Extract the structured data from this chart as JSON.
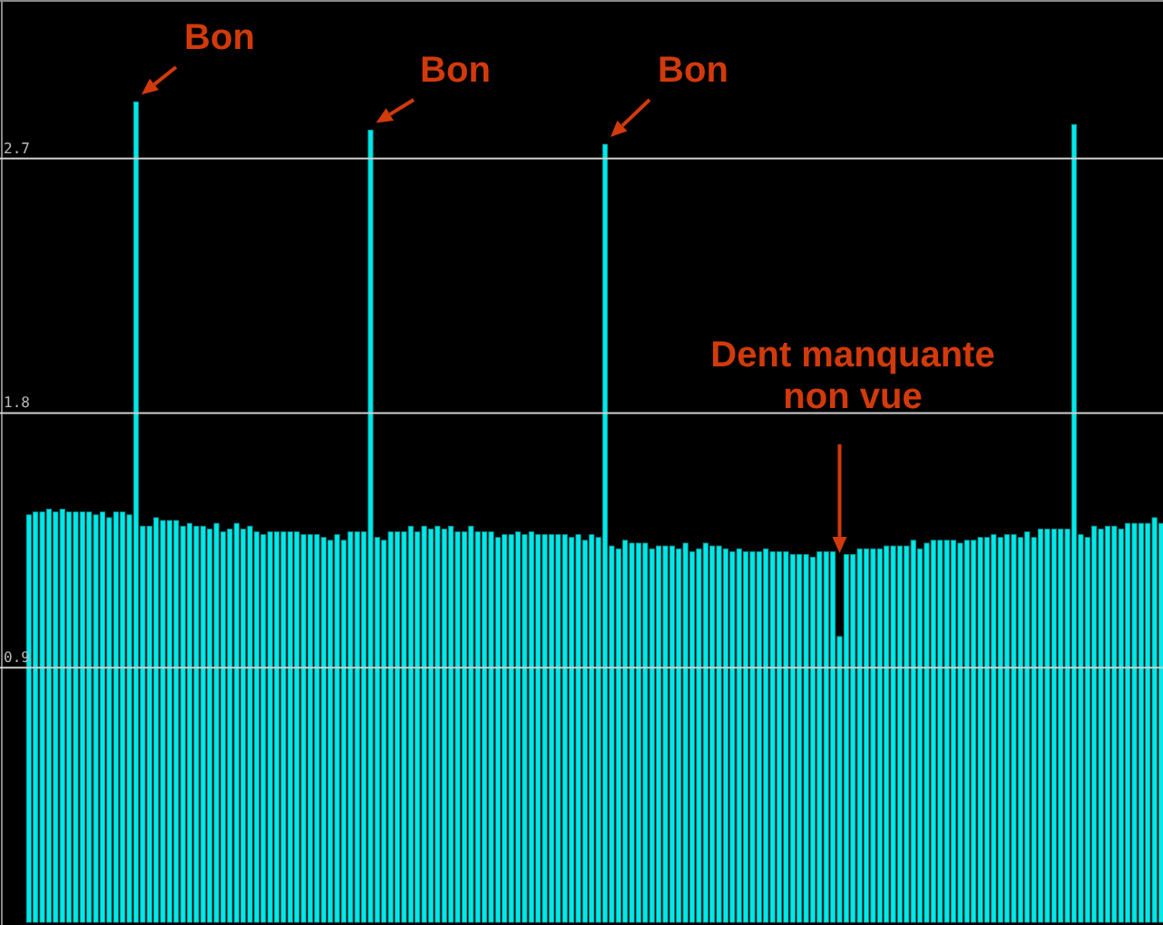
{
  "chart_data": {
    "type": "bar",
    "color": "#00e8e8",
    "ylim": [
      0,
      3.26
    ],
    "yticks": [
      0.9,
      1.8,
      2.7
    ],
    "grid": "y",
    "categories": [
      null,
      null,
      null,
      null,
      null,
      null,
      null,
      null,
      null,
      null,
      null,
      null,
      null,
      null,
      null,
      null,
      null,
      null,
      null,
      null,
      null,
      null,
      null,
      null,
      null,
      null,
      null,
      null,
      null,
      null,
      null,
      null,
      null,
      null,
      null,
      null,
      null,
      null,
      null,
      null,
      null,
      null,
      null,
      null,
      null,
      null,
      null,
      null,
      null,
      null,
      null,
      null,
      null,
      null,
      null,
      null,
      null,
      null,
      null,
      null,
      null,
      null,
      null,
      null,
      null,
      null,
      null,
      null,
      null,
      null,
      null,
      null,
      null,
      null,
      null,
      null,
      null,
      null,
      null,
      null,
      null,
      null,
      null,
      null,
      null,
      null,
      null,
      null,
      null,
      null,
      null,
      null,
      null,
      null,
      null,
      null,
      null,
      null,
      null,
      null,
      null,
      null,
      null,
      null,
      null,
      null,
      null,
      null,
      null,
      null,
      null,
      null,
      null,
      null,
      null,
      null,
      null,
      null,
      null,
      null,
      null,
      null,
      null,
      null,
      null,
      null,
      null,
      null,
      null,
      null,
      null,
      null,
      null,
      null,
      null,
      null,
      null,
      null,
      null,
      null,
      null,
      null,
      null,
      null,
      null,
      null,
      null,
      null,
      null,
      null,
      null,
      null,
      null,
      null,
      null,
      null,
      null,
      null,
      null,
      null,
      null,
      null,
      null,
      null,
      null,
      null,
      null,
      null,
      null,
      null
    ],
    "values": [
      1.44,
      1.45,
      1.45,
      1.46,
      1.45,
      1.46,
      1.45,
      1.45,
      1.45,
      1.45,
      1.44,
      1.45,
      1.43,
      1.45,
      1.45,
      1.44,
      2.9,
      1.4,
      1.4,
      1.43,
      1.42,
      1.42,
      1.42,
      1.4,
      1.41,
      1.4,
      1.4,
      1.39,
      1.41,
      1.38,
      1.39,
      1.41,
      1.39,
      1.4,
      1.38,
      1.37,
      1.38,
      1.38,
      1.38,
      1.38,
      1.38,
      1.37,
      1.37,
      1.37,
      1.36,
      1.35,
      1.37,
      1.35,
      1.38,
      1.38,
      1.38,
      2.8,
      1.36,
      1.35,
      1.38,
      1.38,
      1.38,
      1.4,
      1.38,
      1.4,
      1.39,
      1.4,
      1.39,
      1.4,
      1.38,
      1.38,
      1.4,
      1.38,
      1.38,
      1.38,
      1.36,
      1.37,
      1.37,
      1.38,
      1.37,
      1.38,
      1.37,
      1.37,
      1.37,
      1.37,
      1.37,
      1.36,
      1.37,
      1.35,
      1.37,
      1.36,
      2.75,
      1.33,
      1.32,
      1.35,
      1.34,
      1.34,
      1.34,
      1.32,
      1.33,
      1.33,
      1.33,
      1.32,
      1.34,
      1.31,
      1.32,
      1.34,
      1.33,
      1.33,
      1.32,
      1.31,
      1.32,
      1.31,
      1.31,
      1.31,
      1.32,
      1.31,
      1.31,
      1.31,
      1.3,
      1.3,
      1.3,
      1.29,
      1.31,
      1.31,
      1.31,
      1.01,
      1.3,
      1.3,
      1.32,
      1.32,
      1.32,
      1.32,
      1.33,
      1.33,
      1.33,
      1.33,
      1.35,
      1.32,
      1.34,
      1.35,
      1.35,
      1.35,
      1.35,
      1.34,
      1.35,
      1.35,
      1.36,
      1.36,
      1.37,
      1.36,
      1.37,
      1.37,
      1.36,
      1.38,
      1.36,
      1.39,
      1.39,
      1.39,
      1.39,
      1.39,
      2.82,
      1.37,
      1.36,
      1.4,
      1.39,
      1.4,
      1.4,
      1.39,
      1.41,
      1.41,
      1.41,
      1.41,
      1.43,
      1.41
    ],
    "annotations": [
      "Bon",
      "Bon",
      "Bon",
      "Dent manquante\nnon vue"
    ]
  }
}
